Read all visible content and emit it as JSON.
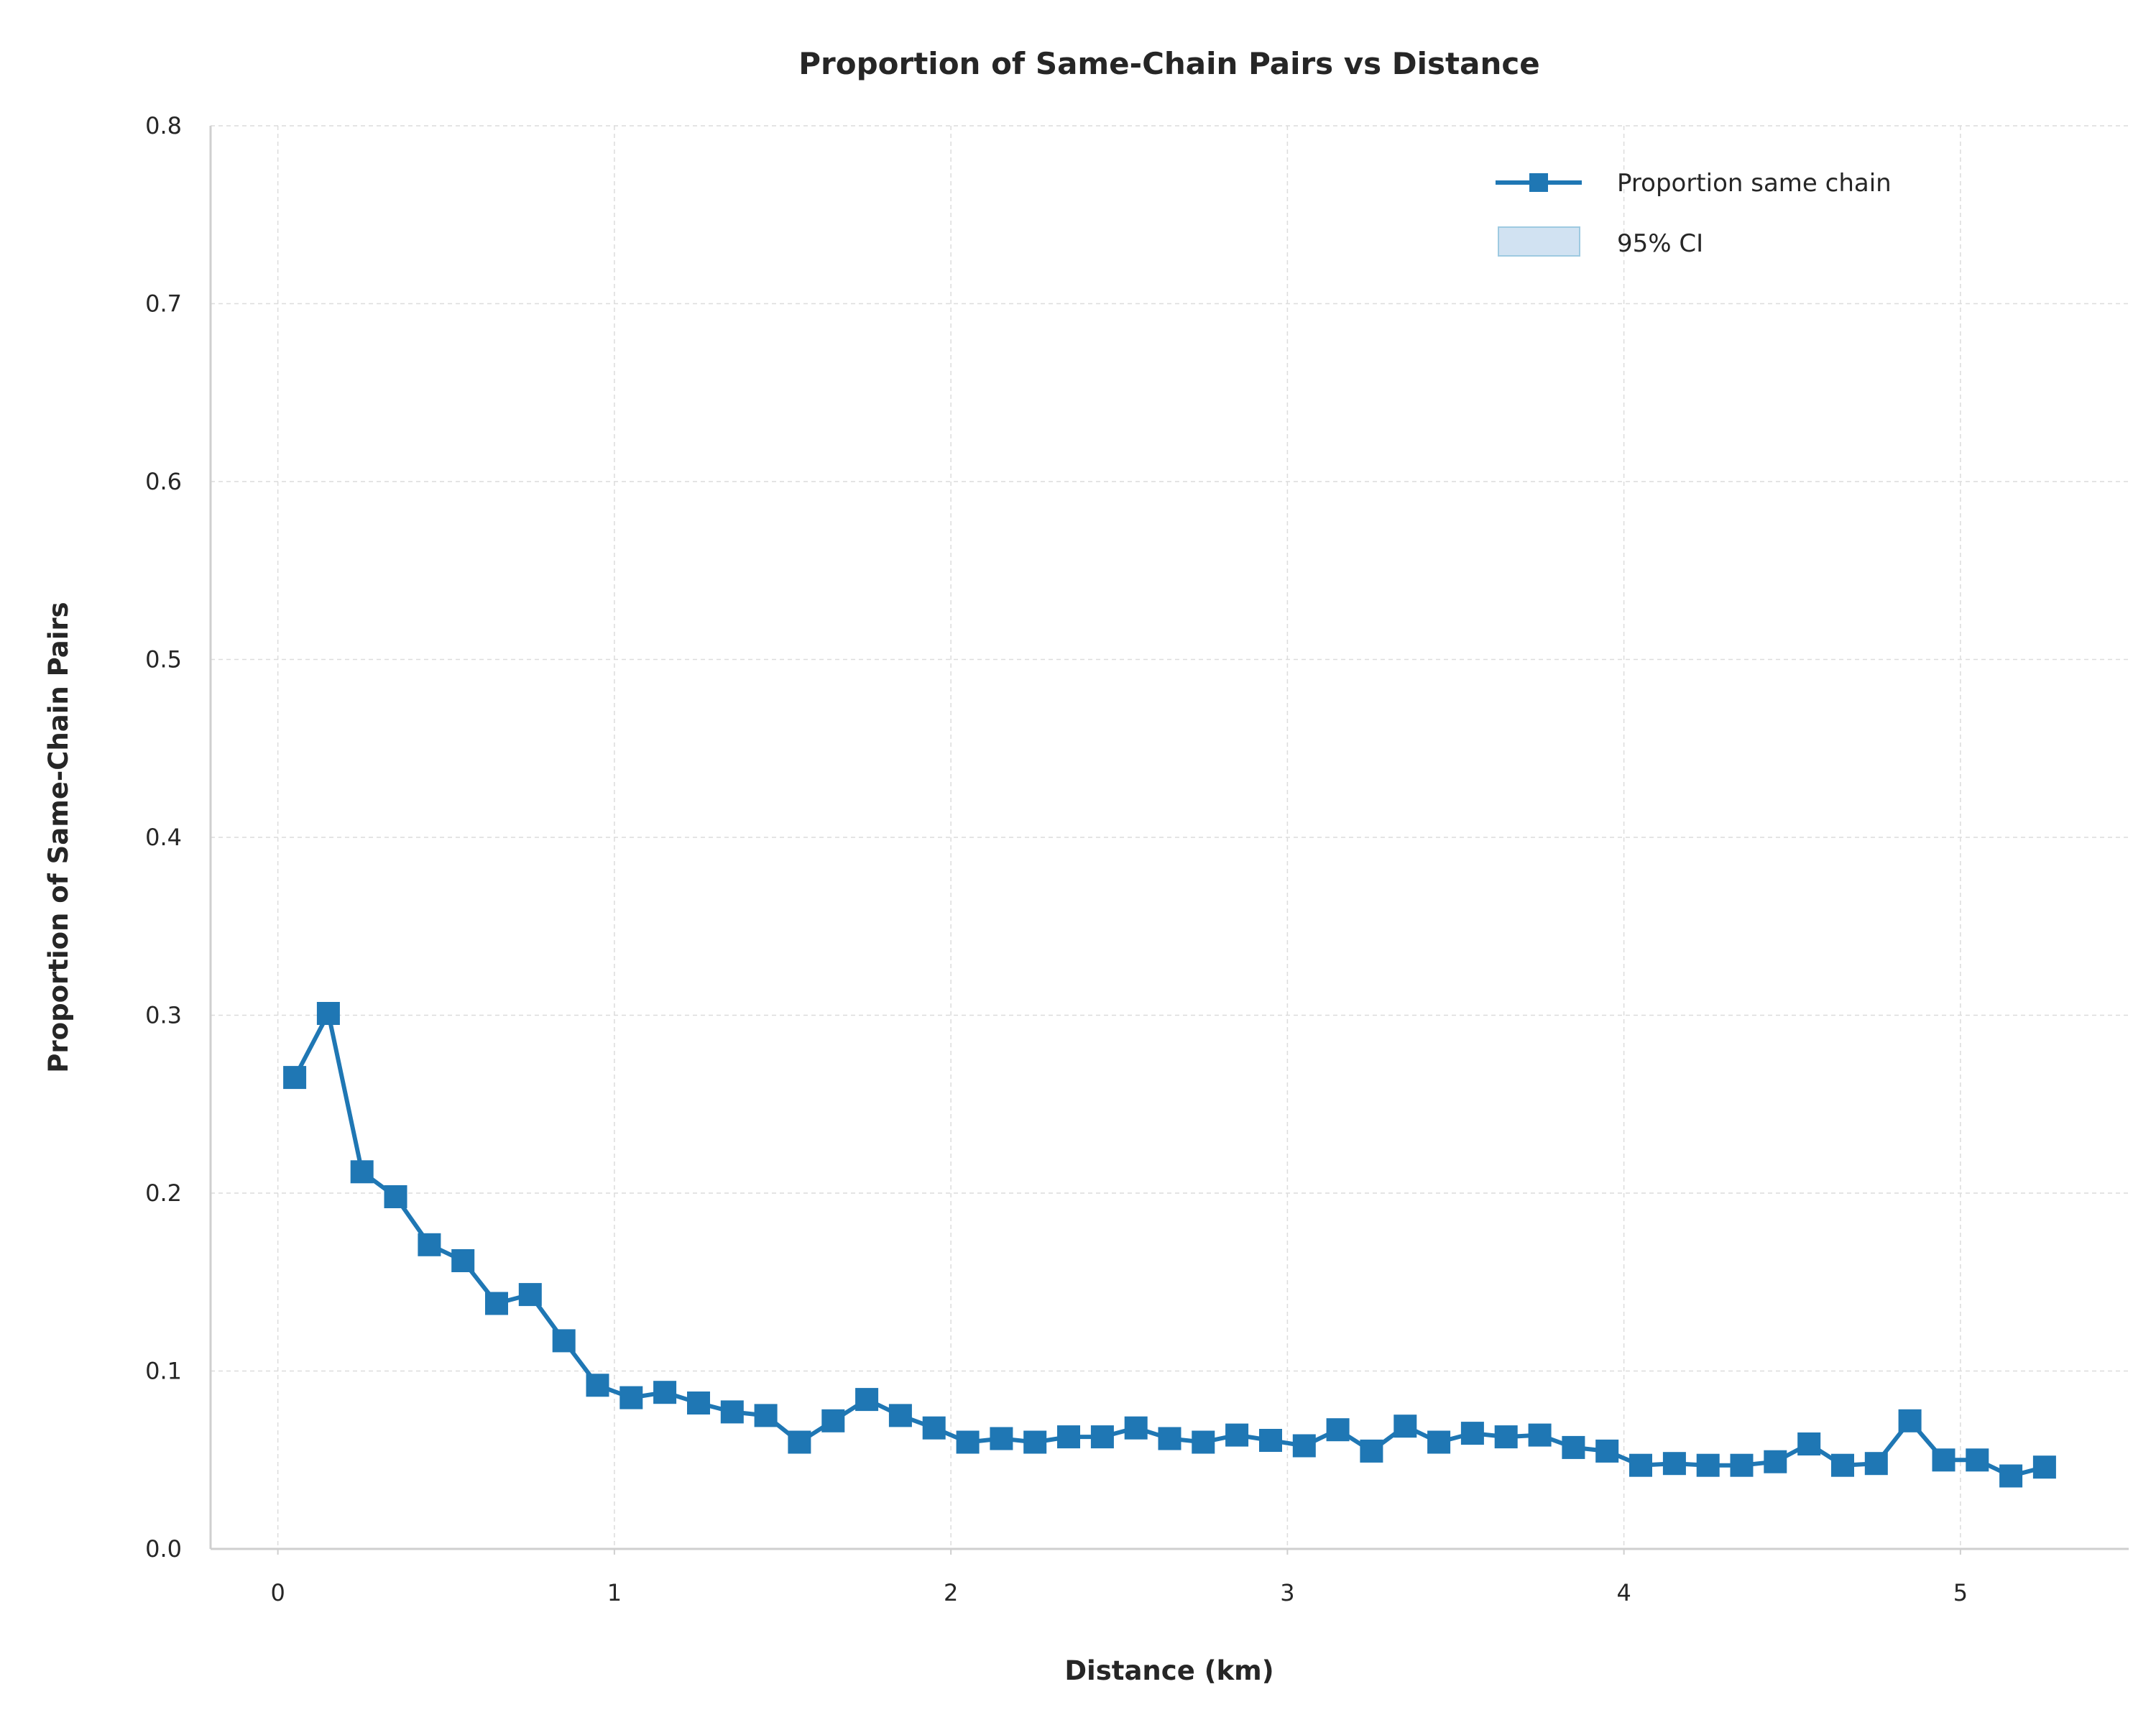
{
  "chart_data": {
    "type": "line",
    "title": "Proportion of Same-Chain Pairs vs Distance",
    "xlabel": "Distance (km)",
    "ylabel": "Proportion of Same-Chain Pairs",
    "xlim": [
      -0.2,
      5.5
    ],
    "ylim": [
      0,
      0.8
    ],
    "xticks": [
      0,
      1,
      2,
      3,
      4,
      5
    ],
    "yticks": [
      0.0,
      0.1,
      0.2,
      0.3,
      0.4,
      0.5,
      0.6,
      0.7,
      0.8
    ],
    "ytick_labels": [
      "0.0",
      "0.1",
      "0.2",
      "0.3",
      "0.4",
      "0.5",
      "0.6",
      "0.7",
      "0.8"
    ],
    "grid": true,
    "legend_position": "top-right",
    "color": "#1f77b4",
    "ci_color": "#c6dbef",
    "series": [
      {
        "name": "Proportion same chain",
        "marker": "square",
        "x": [
          0.05,
          0.15,
          0.25,
          0.35,
          0.45,
          0.55,
          0.65,
          0.75,
          0.85,
          0.95,
          1.05,
          1.15,
          1.25,
          1.35,
          1.45,
          1.55,
          1.65,
          1.75,
          1.85,
          1.95,
          2.05,
          2.15,
          2.25,
          2.35,
          2.45,
          2.55,
          2.65,
          2.75,
          2.85,
          2.95,
          3.05,
          3.15,
          3.25,
          3.35,
          3.45,
          3.55,
          3.65,
          3.75,
          3.85,
          3.95,
          4.05,
          4.15,
          4.25,
          4.35,
          4.45,
          4.55,
          4.65,
          4.75,
          4.85,
          4.95,
          5.05,
          5.15,
          5.25
        ],
        "y": [
          0.265,
          0.301,
          0.212,
          0.198,
          0.171,
          0.162,
          0.138,
          0.143,
          0.117,
          0.092,
          0.085,
          0.088,
          0.082,
          0.077,
          0.075,
          0.06,
          0.072,
          0.084,
          0.075,
          0.068,
          0.06,
          0.062,
          0.06,
          0.063,
          0.063,
          0.068,
          0.062,
          0.06,
          0.064,
          0.061,
          0.058,
          0.067,
          0.055,
          0.069,
          0.06,
          0.065,
          0.063,
          0.064,
          0.057,
          0.055,
          0.047,
          0.048,
          0.047,
          0.047,
          0.049,
          0.059,
          0.047,
          0.048,
          0.072,
          0.05,
          0.05,
          0.041,
          0.046
        ]
      }
    ],
    "ci_band": {
      "name": "95% CI"
    }
  }
}
